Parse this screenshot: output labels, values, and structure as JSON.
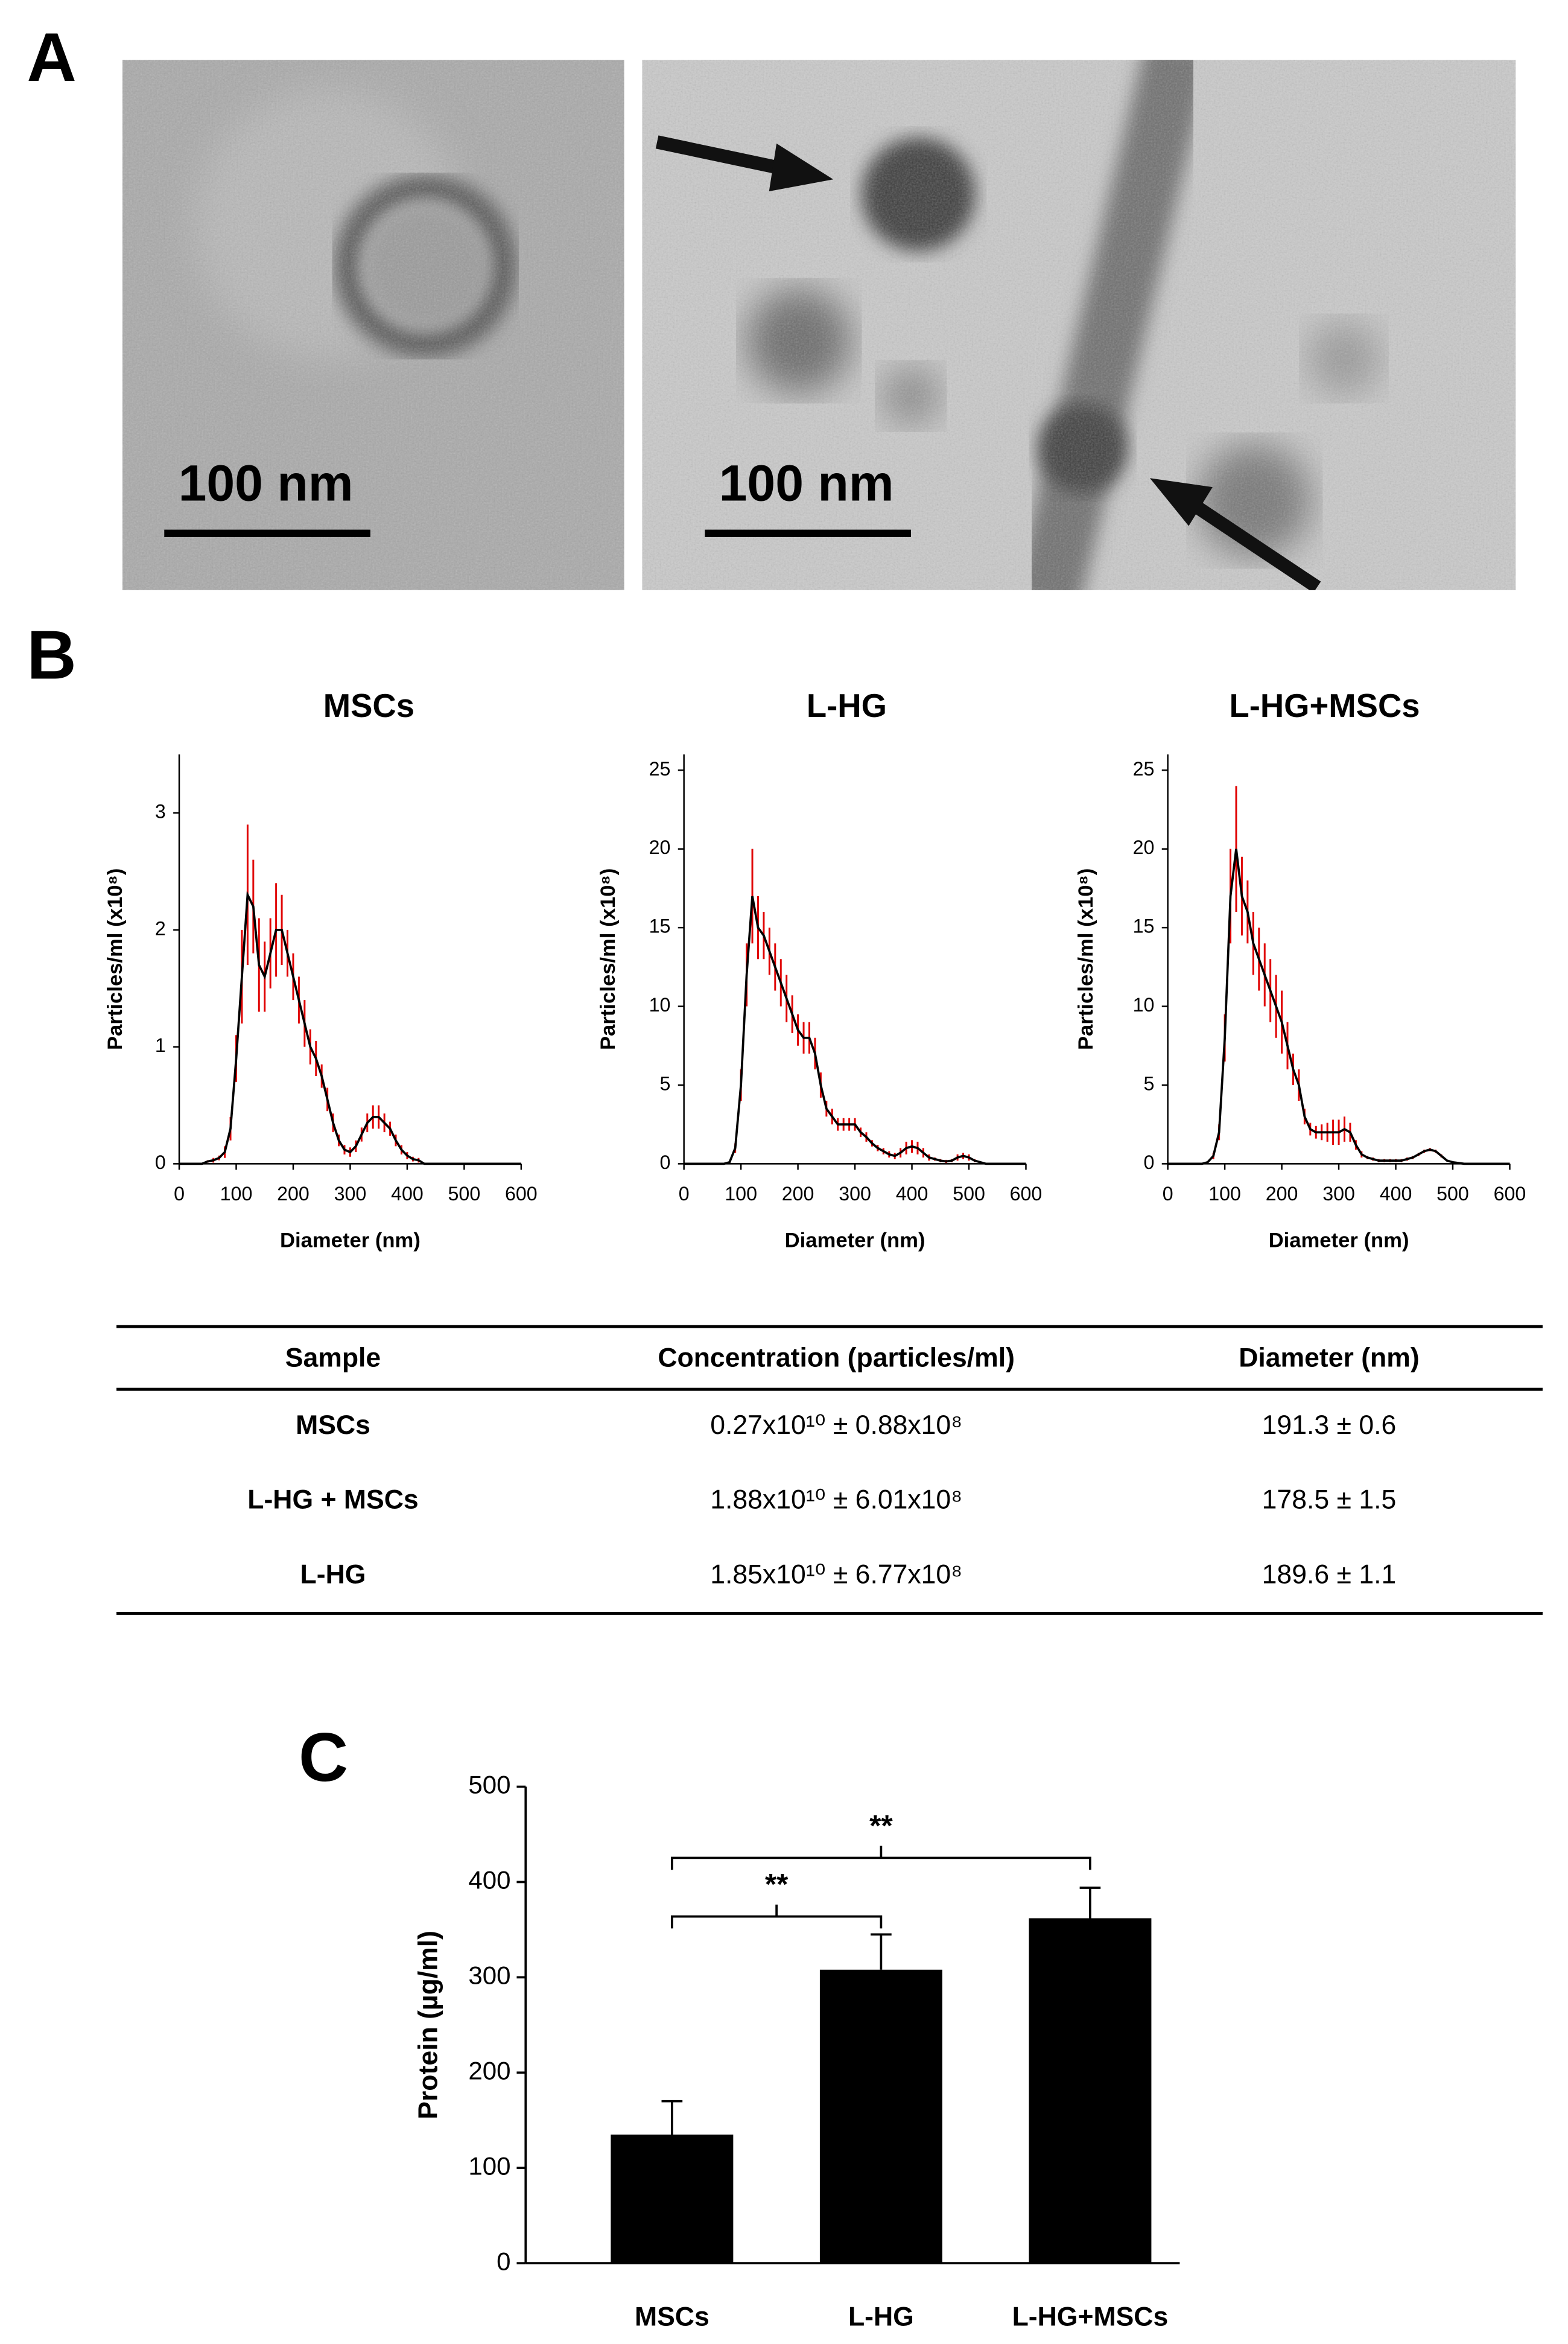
{
  "panel_labels": [
    "A",
    "B",
    "C"
  ],
  "micrographs": [
    {
      "scale_label": "100 nm"
    },
    {
      "scale_label": "100 nm"
    }
  ],
  "chart_data": [
    {
      "type": "line",
      "title": "MSCs",
      "x_label": "Diameter (nm)",
      "y_label": "Particles/ml (x10⁸)",
      "xlim": [
        0,
        600
      ],
      "xticks": [
        0,
        100,
        200,
        300,
        400,
        500,
        600
      ],
      "ylim": [
        0,
        3.5
      ],
      "yticks": [
        0,
        1,
        2,
        3
      ],
      "x": [
        0,
        10,
        20,
        30,
        40,
        50,
        60,
        70,
        80,
        90,
        100,
        110,
        120,
        130,
        140,
        150,
        160,
        170,
        180,
        190,
        200,
        210,
        220,
        230,
        240,
        250,
        260,
        270,
        280,
        290,
        300,
        310,
        320,
        330,
        340,
        350,
        360,
        370,
        380,
        390,
        400,
        410,
        420,
        430,
        440,
        450,
        460,
        470,
        480,
        490,
        500,
        510,
        520,
        530,
        540,
        550,
        560,
        570,
        580,
        590,
        600
      ],
      "series": [
        {
          "color": "#000000",
          "error_color": "#e00000",
          "values": [
            0,
            0,
            0,
            0,
            0,
            0.02,
            0.03,
            0.05,
            0.1,
            0.3,
            0.9,
            1.6,
            2.3,
            2.2,
            1.7,
            1.6,
            1.8,
            2.0,
            2.0,
            1.8,
            1.6,
            1.4,
            1.2,
            1.0,
            0.9,
            0.75,
            0.55,
            0.35,
            0.2,
            0.12,
            0.1,
            0.15,
            0.25,
            0.35,
            0.4,
            0.4,
            0.35,
            0.3,
            0.2,
            0.12,
            0.07,
            0.04,
            0.03,
            0,
            0,
            0,
            0,
            0,
            0,
            0,
            0,
            0,
            0,
            0,
            0,
            0,
            0,
            0,
            0,
            0,
            0
          ],
          "errors": [
            0,
            0,
            0,
            0,
            0,
            0.01,
            0.02,
            0.02,
            0.05,
            0.1,
            0.2,
            0.4,
            0.6,
            0.4,
            0.4,
            0.3,
            0.3,
            0.4,
            0.3,
            0.2,
            0.2,
            0.2,
            0.2,
            0.15,
            0.15,
            0.1,
            0.1,
            0.08,
            0.05,
            0.04,
            0.04,
            0.05,
            0.06,
            0.08,
            0.1,
            0.1,
            0.08,
            0.06,
            0.05,
            0.04,
            0.03,
            0.02,
            0.02,
            0,
            0,
            0,
            0,
            0,
            0,
            0,
            0,
            0,
            0,
            0,
            0,
            0,
            0,
            0,
            0,
            0,
            0
          ]
        }
      ]
    },
    {
      "type": "line",
      "title": "L-HG",
      "x_label": "Diameter (nm)",
      "y_label": "Particles/ml (x10⁸)",
      "xlim": [
        0,
        600
      ],
      "xticks": [
        0,
        100,
        200,
        300,
        400,
        500,
        600
      ],
      "ylim": [
        0,
        26
      ],
      "yticks": [
        0,
        5,
        10,
        15,
        20,
        25
      ],
      "x": [
        0,
        10,
        20,
        30,
        40,
        50,
        60,
        70,
        80,
        90,
        100,
        110,
        120,
        130,
        140,
        150,
        160,
        170,
        180,
        190,
        200,
        210,
        220,
        230,
        240,
        250,
        260,
        270,
        280,
        290,
        300,
        310,
        320,
        330,
        340,
        350,
        360,
        370,
        380,
        390,
        400,
        410,
        420,
        430,
        440,
        450,
        460,
        470,
        480,
        490,
        500,
        510,
        520,
        530,
        540,
        550,
        560,
        570,
        580,
        590,
        600
      ],
      "series": [
        {
          "color": "#000000",
          "error_color": "#e00000",
          "values": [
            0,
            0,
            0,
            0,
            0,
            0,
            0,
            0,
            0.1,
            1,
            5,
            12,
            17,
            15,
            14.5,
            13.5,
            12.5,
            11.5,
            10.5,
            9.5,
            8.5,
            8,
            8,
            7,
            5,
            3.5,
            3,
            2.5,
            2.5,
            2.5,
            2.5,
            2,
            1.7,
            1.3,
            1,
            0.8,
            0.6,
            0.5,
            0.7,
            1,
            1.1,
            1.0,
            0.7,
            0.4,
            0.3,
            0.2,
            0.15,
            0.2,
            0.4,
            0.5,
            0.4,
            0.2,
            0.1,
            0,
            0,
            0,
            0,
            0,
            0,
            0,
            0
          ],
          "errors": [
            0,
            0,
            0,
            0,
            0,
            0,
            0,
            0,
            0.05,
            0.3,
            1,
            2,
            3,
            2,
            1.5,
            1.5,
            1.5,
            1.5,
            1.5,
            1.2,
            1,
            1,
            1,
            1,
            0.8,
            0.5,
            0.5,
            0.4,
            0.4,
            0.4,
            0.4,
            0.3,
            0.3,
            0.2,
            0.2,
            0.2,
            0.2,
            0.2,
            0.3,
            0.4,
            0.4,
            0.4,
            0.3,
            0.2,
            0.1,
            0.1,
            0.1,
            0.1,
            0.2,
            0.2,
            0.2,
            0.1,
            0.05,
            0,
            0,
            0,
            0,
            0,
            0,
            0,
            0
          ]
        }
      ]
    },
    {
      "type": "line",
      "title": "L-HG+MSCs",
      "x_label": "Diameter (nm)",
      "y_label": "Particles/ml (x10⁸)",
      "xlim": [
        0,
        600
      ],
      "xticks": [
        0,
        100,
        200,
        300,
        400,
        500,
        600
      ],
      "ylim": [
        0,
        26
      ],
      "yticks": [
        0,
        5,
        10,
        15,
        20,
        25
      ],
      "x": [
        0,
        10,
        20,
        30,
        40,
        50,
        60,
        70,
        80,
        90,
        100,
        110,
        120,
        130,
        140,
        150,
        160,
        170,
        180,
        190,
        200,
        210,
        220,
        230,
        240,
        250,
        260,
        270,
        280,
        290,
        300,
        310,
        320,
        330,
        340,
        350,
        360,
        370,
        380,
        390,
        400,
        410,
        420,
        430,
        440,
        450,
        460,
        470,
        480,
        490,
        500,
        510,
        520,
        530,
        540,
        550,
        560,
        570,
        580,
        590,
        600
      ],
      "series": [
        {
          "color": "#000000",
          "error_color": "#e00000",
          "values": [
            0,
            0,
            0,
            0,
            0,
            0,
            0,
            0.1,
            0.5,
            2,
            8,
            17,
            20,
            17,
            16,
            14,
            13,
            12,
            11,
            10,
            9,
            7.5,
            6,
            5,
            3,
            2.2,
            2,
            2,
            2,
            2,
            2,
            2.2,
            2,
            1.2,
            0.6,
            0.4,
            0.3,
            0.2,
            0.2,
            0.2,
            0.2,
            0.2,
            0.3,
            0.4,
            0.6,
            0.8,
            0.9,
            0.8,
            0.5,
            0.2,
            0.1,
            0.05,
            0,
            0,
            0,
            0,
            0,
            0,
            0,
            0,
            0
          ],
          "errors": [
            0,
            0,
            0,
            0,
            0,
            0,
            0,
            0.05,
            0.2,
            0.5,
            1.5,
            3,
            4,
            2.5,
            2,
            2,
            2,
            2,
            2,
            2,
            2,
            1.5,
            1,
            1,
            0.5,
            0.4,
            0.4,
            0.5,
            0.6,
            0.8,
            0.8,
            0.8,
            0.6,
            0.3,
            0.2,
            0.1,
            0.1,
            0.1,
            0.1,
            0.1,
            0.1,
            0.1,
            0.1,
            0.1,
            0.1,
            0.1,
            0.1,
            0.1,
            0.1,
            0.05,
            0.05,
            0.02,
            0,
            0,
            0,
            0,
            0,
            0,
            0,
            0,
            0
          ]
        }
      ]
    },
    {
      "type": "bar",
      "y_label": "Protein (µg/ml)",
      "categories": [
        "MSCs",
        "L-HG",
        "L-HG+MSCs"
      ],
      "values": [
        135,
        308,
        362
      ],
      "errors": [
        35,
        37,
        32
      ],
      "color": "#000000",
      "ylim": [
        0,
        500
      ],
      "yticks": [
        0,
        100,
        200,
        300,
        400,
        500
      ],
      "significance": [
        {
          "label": "**",
          "between": [
            0,
            1
          ]
        },
        {
          "label": "**",
          "between": [
            0,
            2
          ]
        }
      ]
    }
  ],
  "table": {
    "header": [
      "Sample",
      "Concentration (particles/ml)",
      "Diameter (nm)"
    ],
    "rows": [
      [
        "MSCs",
        "0.27x10¹⁰ ± 0.88x10⁸",
        "191.3 ± 0.6"
      ],
      [
        "L-HG + MSCs",
        "1.88x10¹⁰ ± 6.01x10⁸",
        "178.5 ± 1.5"
      ],
      [
        "L-HG",
        "1.85x10¹⁰ ± 6.77x10⁸",
        "189.6 ± 1.1"
      ]
    ]
  }
}
